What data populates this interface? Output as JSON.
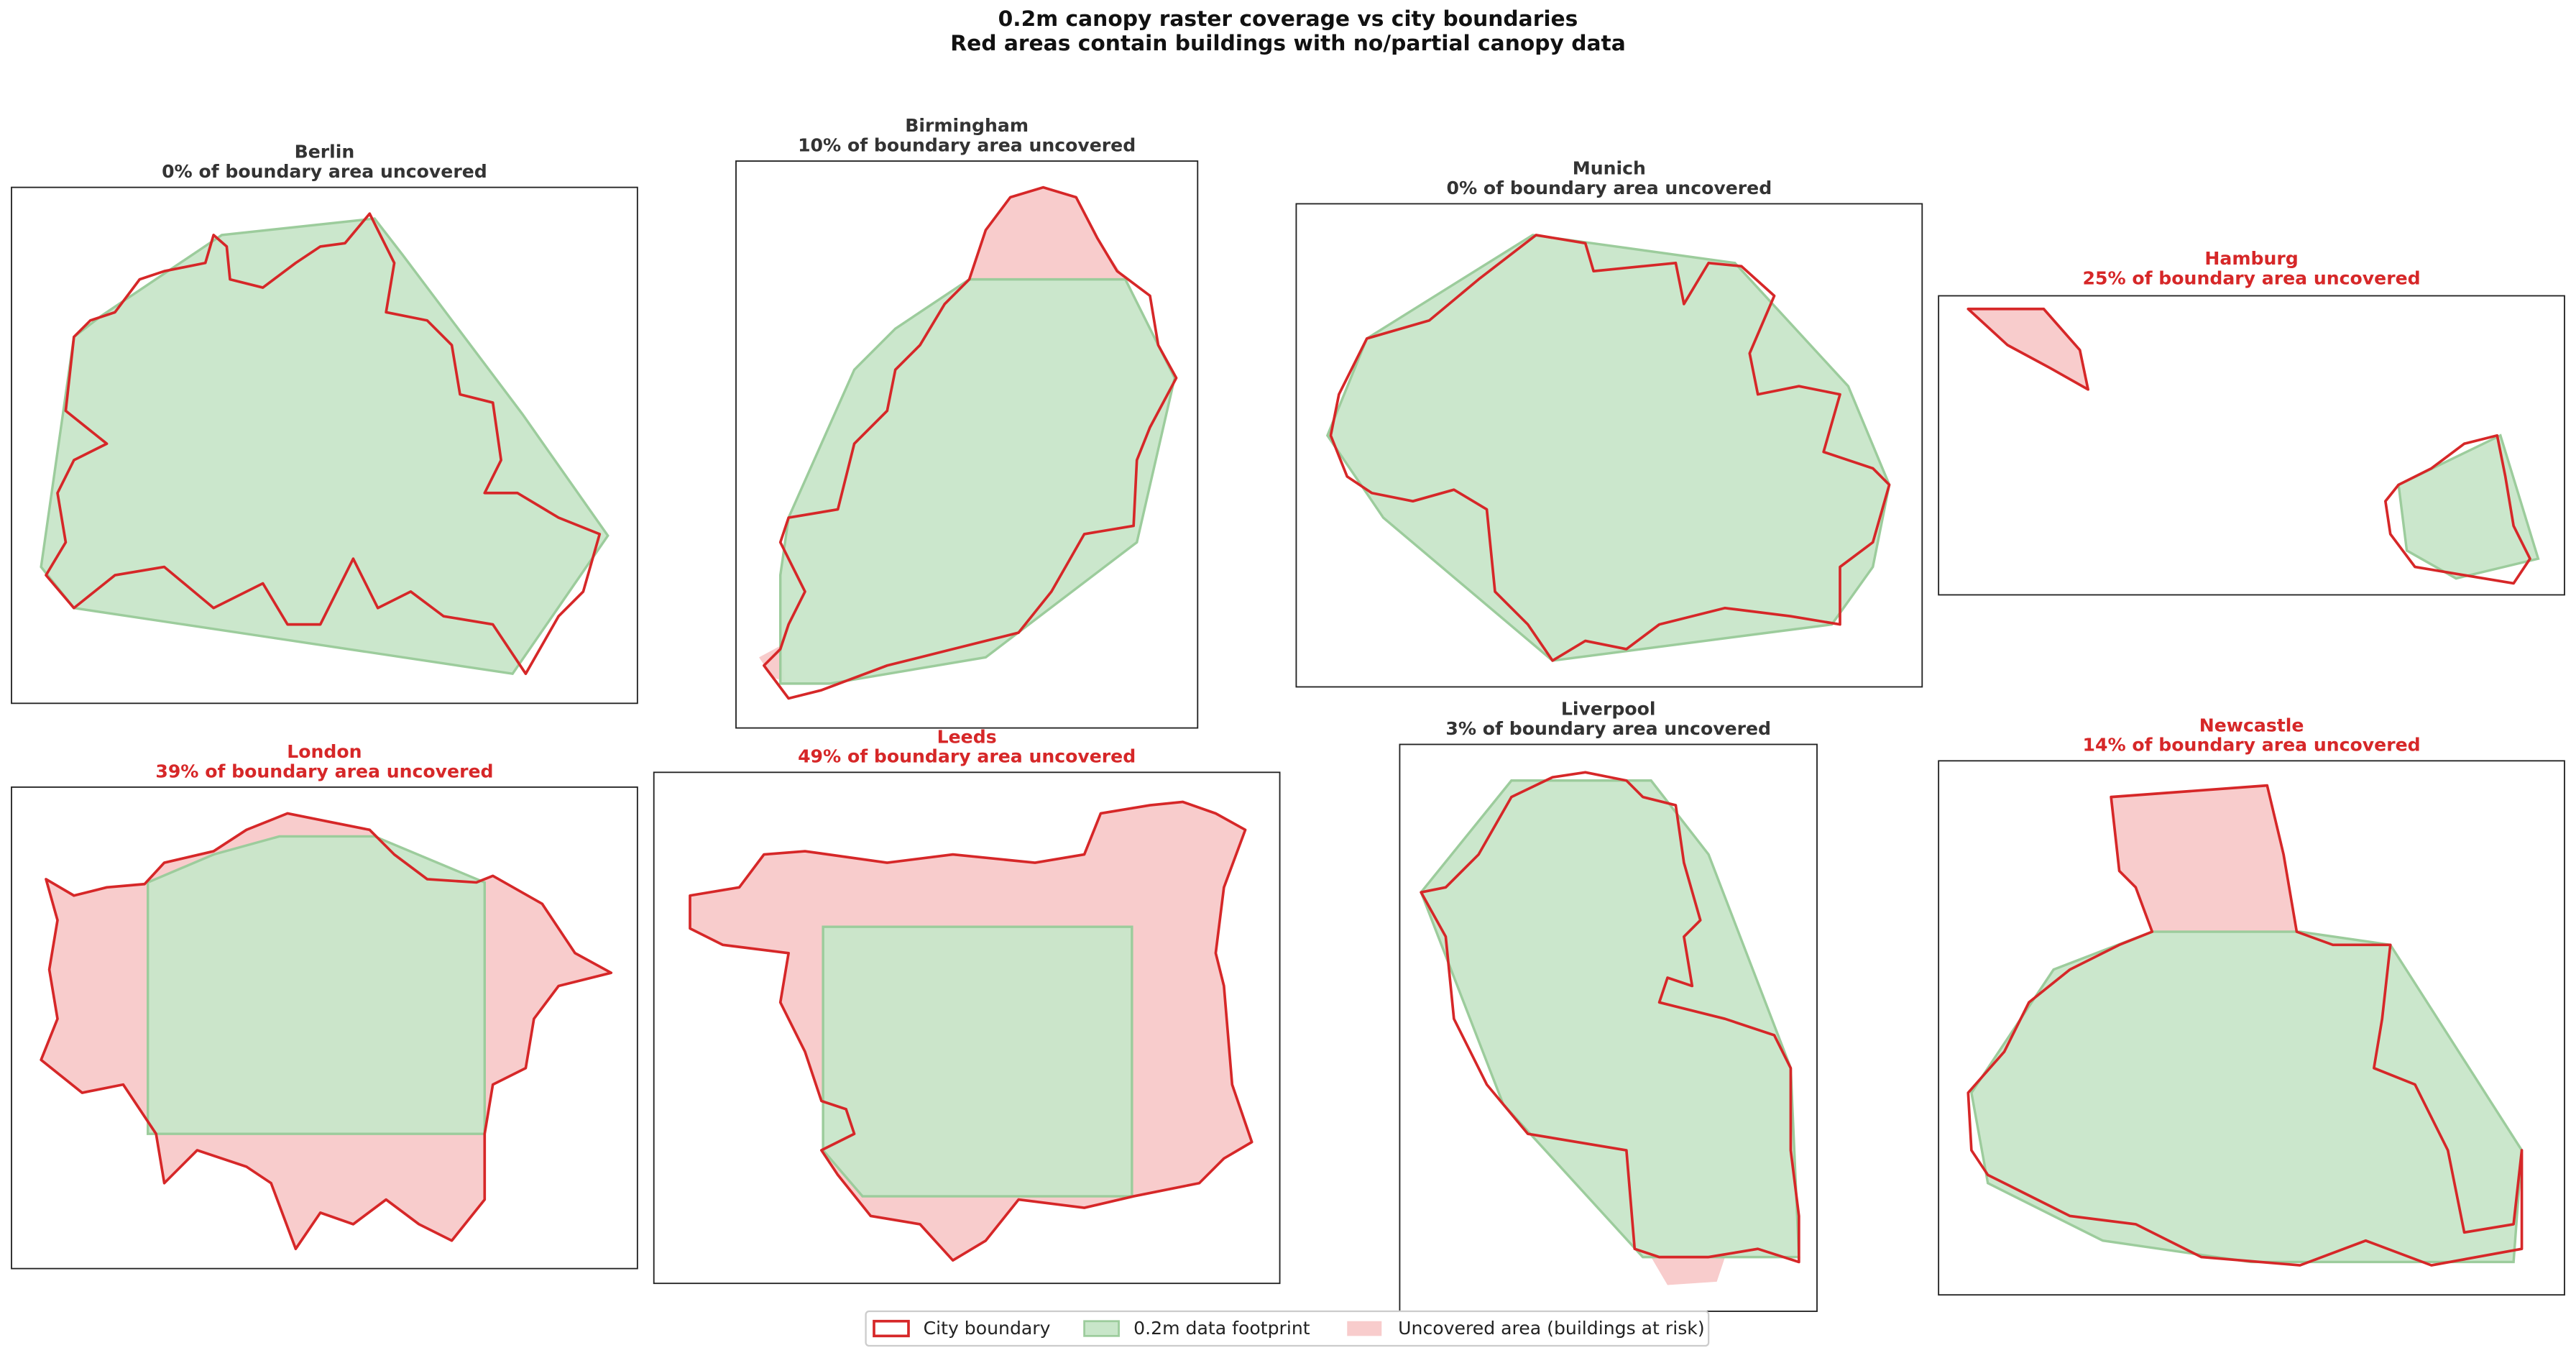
{
  "title": "0.2m canopy raster coverage vs city boundaries",
  "subtitle": "Red areas contain buildings with no/partial canopy data",
  "panels": [
    {
      "name": "Berlin",
      "caption": "0% of boundary area uncovered",
      "title_color": "#333333"
    },
    {
      "name": "Birmingham",
      "caption": "10% of boundary area uncovered",
      "title_color": "#333333"
    },
    {
      "name": "Munich",
      "caption": "0% of boundary area uncovered",
      "title_color": "#333333"
    },
    {
      "name": "Hamburg",
      "caption": "25% of boundary area uncovered",
      "title_color": "#d62728"
    },
    {
      "name": "London",
      "caption": "39% of boundary area uncovered",
      "title_color": "#d62728"
    },
    {
      "name": "Leeds",
      "caption": "49% of boundary area uncovered",
      "title_color": "#d62728"
    },
    {
      "name": "Liverpool",
      "caption": "3% of boundary area uncovered",
      "title_color": "#333333"
    },
    {
      "name": "Newcastle",
      "caption": "14% of boundary area uncovered",
      "title_color": "#d62728"
    }
  ],
  "legend": [
    "City boundary",
    "0.2m data footprint",
    "Uncovered area (buildings at risk)"
  ]
}
